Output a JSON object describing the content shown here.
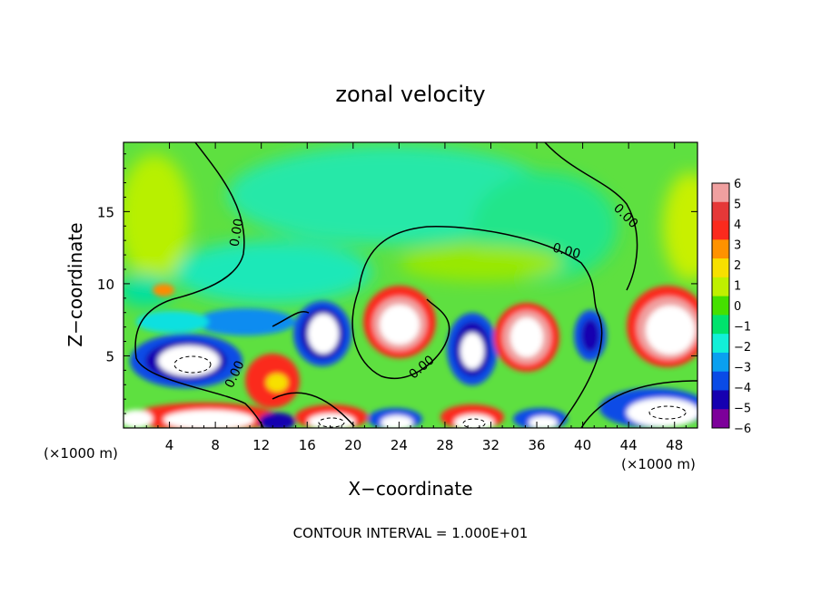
{
  "chart_data": {
    "type": "heatmap",
    "title": "zonal velocity",
    "xlabel": "X−coordinate",
    "ylabel": "Z−coordinate",
    "x_unit_left": "(×1000 m)",
    "x_unit_right": "(×1000 m)",
    "xlim": [
      0,
      50
    ],
    "ylim": [
      0,
      19.8
    ],
    "x_ticks": [
      4,
      8,
      12,
      16,
      20,
      24,
      28,
      32,
      36,
      40,
      44,
      48
    ],
    "y_ticks": [
      5,
      10,
      15
    ],
    "x_tick_labels": [
      "4",
      "8",
      "12",
      "16",
      "20",
      "24",
      "28",
      "32",
      "36",
      "40",
      "44",
      "48"
    ],
    "y_tick_labels": [
      "5",
      "10",
      "15"
    ],
    "colorbar": {
      "levels": [
        6,
        5,
        4,
        3,
        2,
        1,
        0,
        -1,
        -2,
        -3,
        -4,
        -5,
        -6
      ],
      "labels": [
        "6",
        "5",
        "4",
        "3",
        "2",
        "1",
        "0",
        "−1",
        "−2",
        "−3",
        "−4",
        "−5",
        "−6"
      ],
      "colors": [
        "#f0a0a0",
        "#e53838",
        "#fb2a1d",
        "#ff9200",
        "#f7e000",
        "#bff000",
        "#45e000",
        "#00e36d",
        "#12f0d8",
        "#0aa0f0",
        "#0a4be6",
        "#1600b0",
        "#7d009a"
      ]
    },
    "contour_labels": [
      {
        "text": "0.00",
        "x": 10.2,
        "z": 13.5,
        "angle": -80
      },
      {
        "text": "0.00",
        "x": 38.5,
        "z": 12.0,
        "angle": 15
      },
      {
        "text": "0.00",
        "x": 43.5,
        "z": 14.5,
        "angle": 45
      },
      {
        "text": "0.00",
        "x": 10.0,
        "z": 3.6,
        "angle": -65
      },
      {
        "text": "0.00",
        "x": 26.2,
        "z": 4.0,
        "angle": -40
      }
    ],
    "footer": "CONTOUR INTERVAL = 1.000E+01"
  }
}
